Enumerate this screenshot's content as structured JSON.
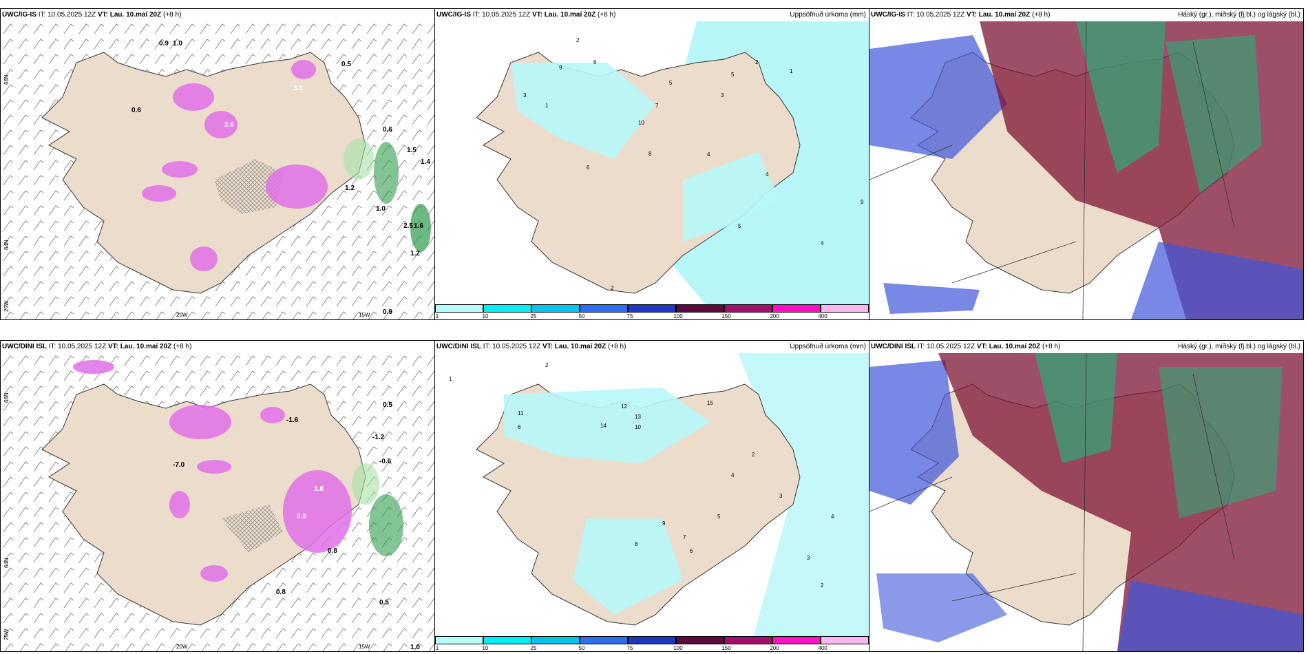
{
  "panels": {
    "r1c1": {
      "model": "UWC/IG-IS",
      "it_label": "IT:",
      "it": "10.05.2025 12Z",
      "vt_label": "VT:",
      "vt": "Lau. 10.maí 20Z",
      "lead": "(+8 h)",
      "right": ""
    },
    "r1c2": {
      "model": "UWC/IG-IS",
      "it_label": "IT:",
      "it": "10.05.2025 12Z",
      "vt_label": "VT:",
      "vt": "Lau. 10.maí 20Z",
      "lead": "(+8 h)",
      "right": "Uppsöfnuð úrkoma (mm)"
    },
    "r1c3": {
      "model": "UWC/IG-IS",
      "it_label": "IT:",
      "it": "10.05.2025 12Z",
      "vt_label": "VT:",
      "vt": "Lau. 10.maí 20Z",
      "lead": "(+8 h)",
      "right": "Háský (gr.), miðský (fj.bl.) og lágský (bl.)"
    },
    "r2c1": {
      "model": "UWC/DINI ISL",
      "it_label": "IT:",
      "it": "10.05.2025 12Z",
      "vt_label": "VT:",
      "vt": "Lau. 10.maí 20Z",
      "lead": "(+8 h)",
      "right": ""
    },
    "r2c2": {
      "model": "UWC/DINI ISL",
      "it_label": "IT:",
      "it": "10.05.2025 12Z",
      "vt_label": "VT:",
      "vt": "Lau. 10.maí 20Z",
      "lead": "(+8 h)",
      "right": "Uppsöfnuð úrkoma (mm)"
    },
    "r2c3": {
      "model": "UWC/DINI ISL",
      "it_label": "IT:",
      "it": "10.05.2025 12Z",
      "vt_label": "VT:",
      "vt": "Lau. 10.maí 20Z",
      "lead": "(+8 h)",
      "right": "Háský (gr.), miðský (fj.bl.) og lágský (bl.)"
    }
  },
  "axes": {
    "lon": [
      "20W",
      "15W"
    ],
    "lat": [
      "66N",
      "64N",
      "25W"
    ]
  },
  "colorbar": {
    "ticks": [
      "1",
      "10",
      "25",
      "50",
      "75",
      "100",
      "150",
      "200",
      "400"
    ],
    "colors": [
      "#b8fbfb",
      "#00f0f0",
      "#00c4e8",
      "#2e6cf0",
      "#1f35c4",
      "#5a0a3c",
      "#a0106a",
      "#ff10c0",
      "#f7b8f0"
    ]
  },
  "colors": {
    "land": "#ecdccb",
    "cyan": "#b7f7f7",
    "magenta": "#e070e8",
    "green": "#2e9d4c",
    "darkred": "#7d1435",
    "blue": "#3e56d8"
  },
  "precip_labels_top": [
    "2",
    "6",
    "9",
    "3",
    "1",
    "10",
    "7",
    "5",
    "4",
    "8",
    "3",
    "5",
    "2",
    "1",
    "4",
    "6",
    "9",
    "5",
    "4",
    "2"
  ],
  "precip_labels_bottom": [
    "2",
    "11",
    "6",
    "14",
    "13",
    "12",
    "15",
    "10",
    "8",
    "7",
    "9",
    "4",
    "3",
    "2",
    "5",
    "6",
    "4",
    "3",
    "1",
    "2"
  ],
  "rain_labels_top": [
    "0.9",
    "1.0",
    "0.6",
    "3.1",
    "2.6",
    "0.6",
    "1.2",
    "0.9",
    "1.6",
    "2.5",
    "1.0",
    "1.2",
    "1.5",
    "1.4",
    "0.5"
  ],
  "rain_labels_bottom": [
    "0.5",
    "1.0",
    "-1.6",
    "-1.2",
    "-0.6",
    "0.8",
    "0.5",
    "0.8",
    "-7.0",
    "1.8",
    "0.9"
  ]
}
